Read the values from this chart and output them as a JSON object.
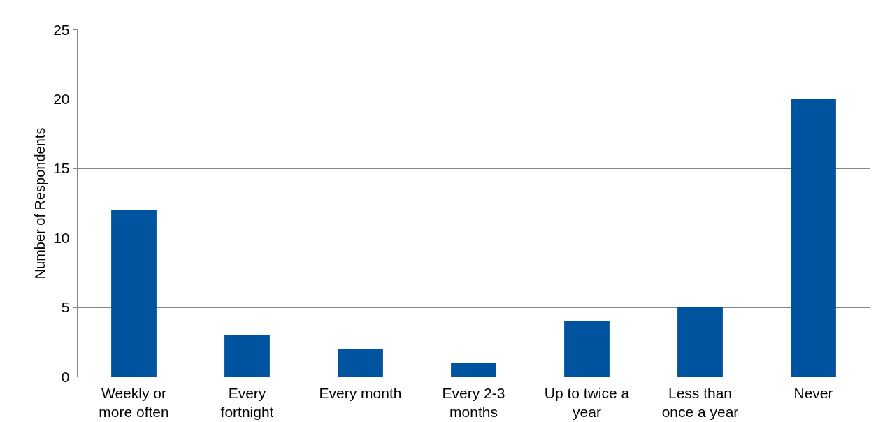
{
  "chart_data": {
    "type": "bar",
    "ylabel": "Number of Respondents",
    "categories": [
      "Weekly or more often",
      "Every fortnight",
      "Every month",
      "Every 2-3 months",
      "Up to twice a year",
      "Less than once a year",
      "Never"
    ],
    "values": [
      12,
      3,
      2,
      1,
      4,
      5,
      20
    ],
    "color": "#00539f",
    "ylim": [
      0,
      25
    ],
    "yticks": [
      0,
      5,
      10,
      15,
      20,
      25
    ],
    "grid": "y"
  }
}
